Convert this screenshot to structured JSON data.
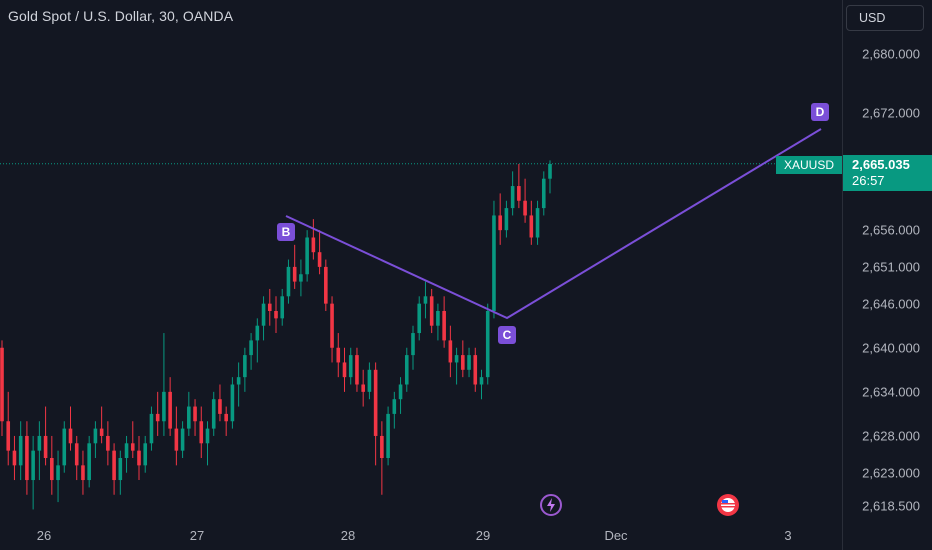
{
  "header": {
    "title": "Gold Spot / U.S. Dollar, 30, OANDA",
    "currency_button": "USD"
  },
  "symbol_tag": "XAUUSD",
  "current_price": {
    "price": "2,665.035",
    "countdown": "26:57"
  },
  "price_axis": [
    "2,680.000",
    "2,672.000",
    "2,656.000",
    "2,651.000",
    "2,646.000",
    "2,640.000",
    "2,634.000",
    "2,628.000",
    "2,623.000",
    "2,618.500"
  ],
  "time_axis": [
    "26",
    "27",
    "28",
    "29",
    "Dec",
    "3"
  ],
  "pattern_points": {
    "b": "B",
    "c": "C",
    "d": "D"
  },
  "events": [
    {
      "icon": "lightning-icon"
    },
    {
      "icon": "us-flag-icon"
    }
  ],
  "colors": {
    "up": "#089981",
    "down": "#f23645",
    "pattern": "#7b4fd8",
    "bg": "#131722"
  },
  "chart_data": {
    "type": "candlestick",
    "title": "Gold Spot / U.S. Dollar, 30, OANDA",
    "symbol": "XAUUSD",
    "ylim": [
      2617,
      2683
    ],
    "x_ticks": [
      "26",
      "27",
      "28",
      "29",
      "Dec",
      "3"
    ],
    "last_price": 2665.035,
    "pattern": {
      "name": "ABCD",
      "points": [
        {
          "label": "B",
          "time": "27 ~12:00",
          "price": 2657.5
        },
        {
          "label": "C",
          "time": "29 ~03:00",
          "price": 2644.5
        },
        {
          "label": "D",
          "time": "3 ~06:00",
          "price": 2670.5
        }
      ]
    },
    "candles_ohlc_approx": [
      [
        2640,
        2641,
        2628,
        2630
      ],
      [
        2630,
        2634,
        2624,
        2626
      ],
      [
        2626,
        2628,
        2622,
        2624
      ],
      [
        2624,
        2630,
        2622,
        2628
      ],
      [
        2628,
        2630,
        2620,
        2622
      ],
      [
        2622,
        2628,
        2618,
        2626
      ],
      [
        2626,
        2630,
        2622,
        2628
      ],
      [
        2628,
        2632,
        2624,
        2625
      ],
      [
        2625,
        2628,
        2620,
        2622
      ],
      [
        2622,
        2626,
        2619,
        2624
      ],
      [
        2624,
        2630,
        2623,
        2629
      ],
      [
        2629,
        2632,
        2626,
        2627
      ],
      [
        2627,
        2628,
        2622,
        2624
      ],
      [
        2624,
        2626,
        2620,
        2622
      ],
      [
        2622,
        2628,
        2621,
        2627
      ],
      [
        2627,
        2630,
        2625,
        2629
      ],
      [
        2629,
        2632,
        2627,
        2628
      ],
      [
        2628,
        2630,
        2624,
        2626
      ],
      [
        2626,
        2627,
        2620,
        2622
      ],
      [
        2622,
        2626,
        2620,
        2625
      ],
      [
        2625,
        2628,
        2623,
        2627
      ],
      [
        2627,
        2630,
        2625,
        2626
      ],
      [
        2626,
        2628,
        2622,
        2624
      ],
      [
        2624,
        2628,
        2623,
        2627
      ],
      [
        2627,
        2632,
        2626,
        2631
      ],
      [
        2631,
        2634,
        2628,
        2630
      ],
      [
        2630,
        2642,
        2628,
        2634
      ],
      [
        2634,
        2636,
        2628,
        2629
      ],
      [
        2629,
        2632,
        2624,
        2626
      ],
      [
        2626,
        2630,
        2625,
        2629
      ],
      [
        2629,
        2634,
        2628,
        2632
      ],
      [
        2632,
        2633,
        2628,
        2630
      ],
      [
        2630,
        2632,
        2625,
        2627
      ],
      [
        2627,
        2630,
        2624,
        2629
      ],
      [
        2629,
        2634,
        2628,
        2633
      ],
      [
        2633,
        2635,
        2630,
        2631
      ],
      [
        2631,
        2632,
        2628,
        2630
      ],
      [
        2630,
        2636,
        2629,
        2635
      ],
      [
        2635,
        2638,
        2632,
        2636
      ],
      [
        2636,
        2640,
        2634,
        2639
      ],
      [
        2639,
        2642,
        2637,
        2641
      ],
      [
        2641,
        2644,
        2638,
        2643
      ],
      [
        2643,
        2647,
        2641,
        2646
      ],
      [
        2646,
        2648,
        2643,
        2645
      ],
      [
        2645,
        2647,
        2642,
        2644
      ],
      [
        2644,
        2648,
        2643,
        2647
      ],
      [
        2647,
        2652,
        2646,
        2651
      ],
      [
        2651,
        2654,
        2648,
        2649
      ],
      [
        2649,
        2652,
        2647,
        2650
      ],
      [
        2650,
        2656,
        2649,
        2655
      ],
      [
        2655,
        2657.5,
        2652,
        2653
      ],
      [
        2653,
        2656,
        2650,
        2651
      ],
      [
        2651,
        2652,
        2645,
        2646
      ],
      [
        2646,
        2647,
        2638,
        2640
      ],
      [
        2640,
        2642,
        2636,
        2638
      ],
      [
        2638,
        2640,
        2634,
        2636
      ],
      [
        2636,
        2640,
        2635,
        2639
      ],
      [
        2639,
        2640,
        2634,
        2635
      ],
      [
        2635,
        2637,
        2632,
        2634
      ],
      [
        2634,
        2638,
        2633,
        2637
      ],
      [
        2637,
        2638,
        2624,
        2628
      ],
      [
        2628,
        2630,
        2620,
        2625
      ],
      [
        2625,
        2632,
        2624,
        2631
      ],
      [
        2631,
        2634,
        2629,
        2633
      ],
      [
        2633,
        2636,
        2631,
        2635
      ],
      [
        2635,
        2640,
        2634,
        2639
      ],
      [
        2639,
        2643,
        2637,
        2642
      ],
      [
        2642,
        2647,
        2641,
        2646
      ],
      [
        2646,
        2649,
        2644,
        2647
      ],
      [
        2647,
        2648,
        2642,
        2643
      ],
      [
        2643,
        2646,
        2641,
        2645
      ],
      [
        2645,
        2647,
        2640,
        2641
      ],
      [
        2641,
        2643,
        2636,
        2638
      ],
      [
        2638,
        2640,
        2635,
        2639
      ],
      [
        2639,
        2641,
        2636,
        2637
      ],
      [
        2637,
        2640,
        2636,
        2639
      ],
      [
        2639,
        2640,
        2634,
        2635
      ],
      [
        2635,
        2637,
        2633,
        2636
      ],
      [
        2636,
        2646,
        2635,
        2645
      ],
      [
        2645,
        2660,
        2644,
        2658
      ],
      [
        2658,
        2661,
        2654,
        2656
      ],
      [
        2656,
        2660,
        2655,
        2659
      ],
      [
        2659,
        2664,
        2658,
        2662
      ],
      [
        2662,
        2665,
        2659,
        2660
      ],
      [
        2660,
        2663,
        2657,
        2658
      ],
      [
        2658,
        2660,
        2654,
        2655
      ],
      [
        2655,
        2660,
        2654,
        2659
      ],
      [
        2659,
        2664,
        2658,
        2663
      ],
      [
        2663,
        2665.5,
        2661,
        2665
      ]
    ]
  }
}
